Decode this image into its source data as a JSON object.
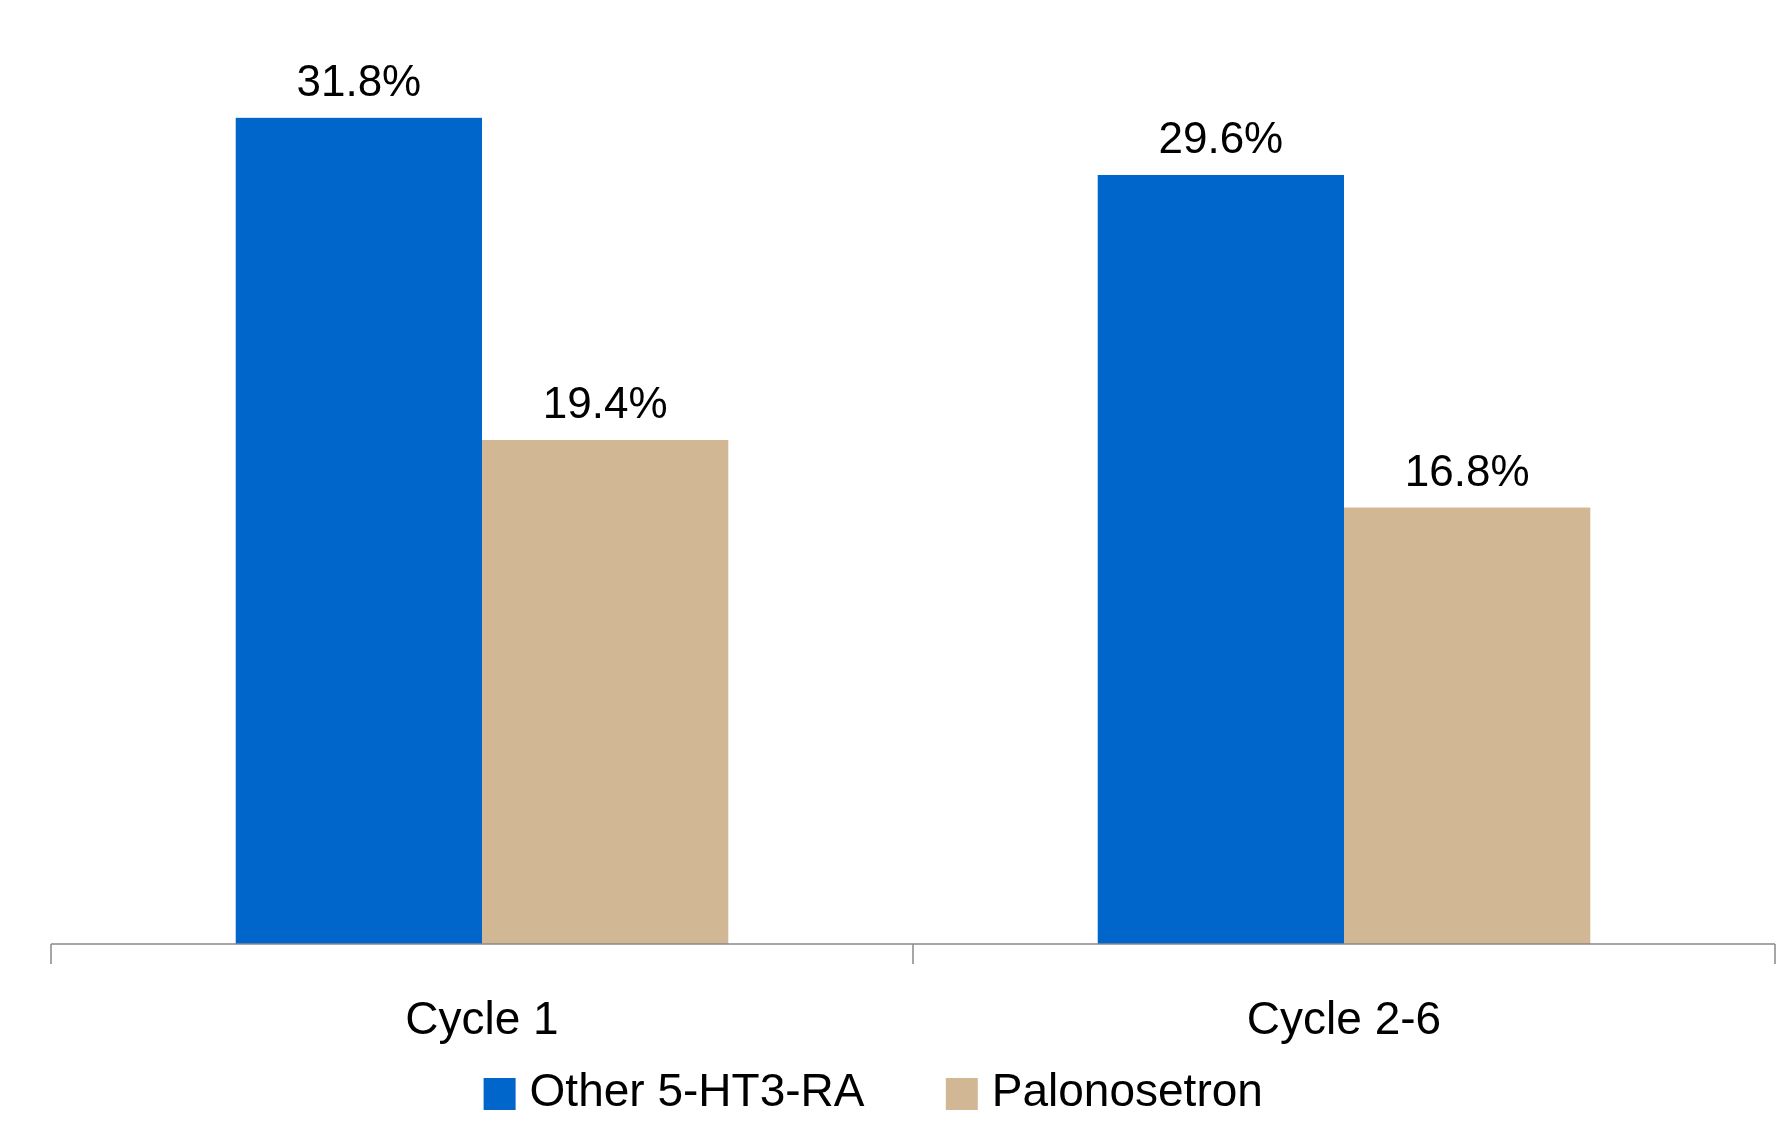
{
  "chart_data": {
    "type": "bar",
    "categories": [
      "Cycle 1",
      "Cycle 2-6"
    ],
    "series": [
      {
        "name": "Other 5-HT3-RA",
        "color": "#0066cc",
        "values": [
          31.8,
          29.6
        ],
        "value_labels": [
          "31.8%",
          "29.6%"
        ]
      },
      {
        "name": "Palonosetron",
        "color": "#d2b795",
        "values": [
          19.4,
          16.8
        ],
        "value_labels": [
          "19.4%",
          "16.8%"
        ]
      }
    ],
    "legend": "bottom"
  }
}
